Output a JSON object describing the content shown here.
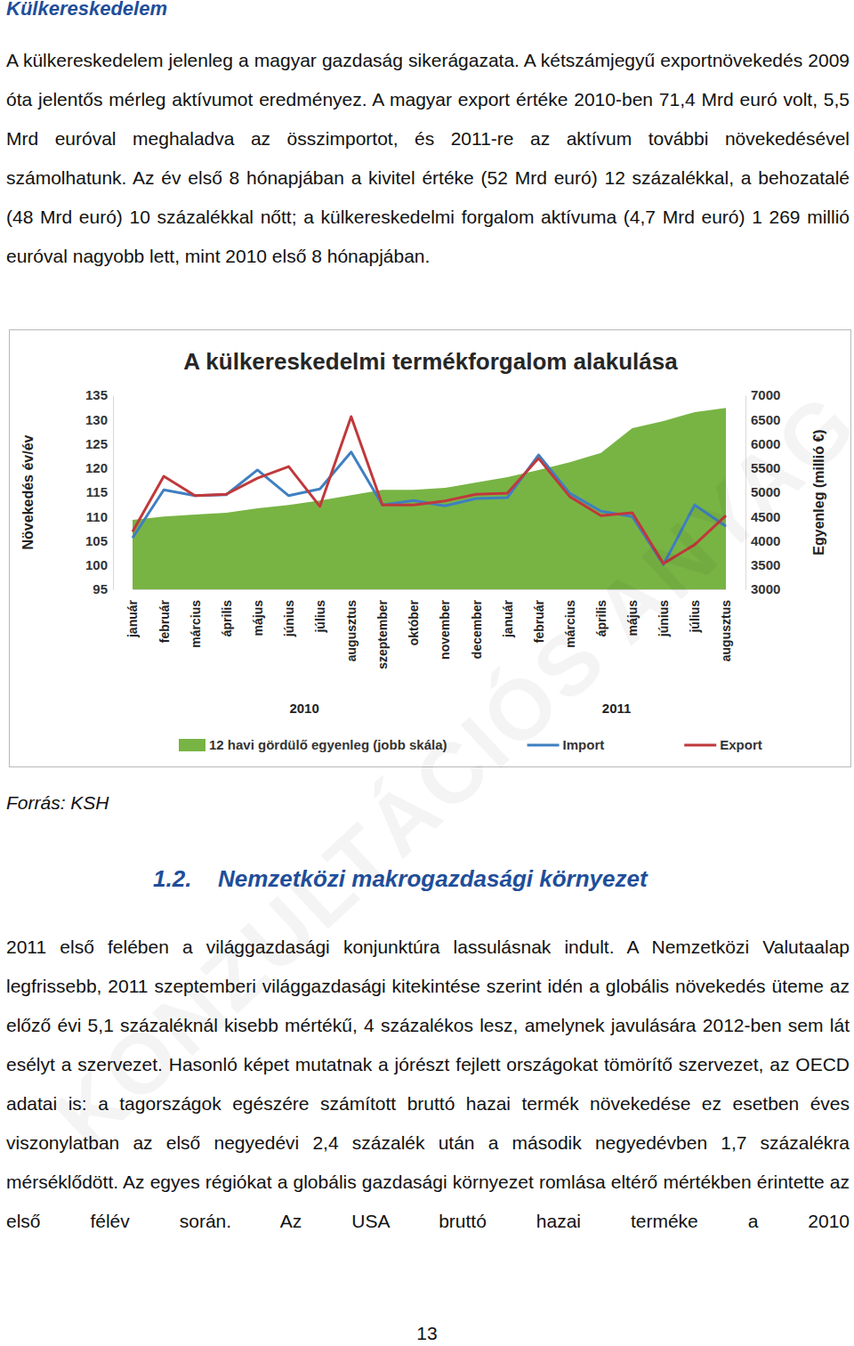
{
  "section_title": "Külkereskedelem",
  "paragraphs": [
    "A külkereskedelem jelenleg a magyar gazdaság sikerágazata. A kétszámjegyű exportnövekedés 2009 óta jelentős mérleg aktívumot eredményez. A magyar export értéke 2010-ben 71,4 Mrd euró volt, 5,5 Mrd euróval meghaladva az összimportot, és 2011-re az aktívum további növekedésével számolhatunk. Az év első 8 hónapjában a kivitel értéke (52 Mrd euró) 12 százalékkal, a behozatalé (48 Mrd euró) 10 százalékkal nőtt; a külkereskedelmi forgalom aktívuma (4,7 Mrd euró) 1 269 millió euróval nagyobb lett, mint 2010 első 8 hónapjában."
  ],
  "chart_data": {
    "type": "line",
    "title": "A külkereskedelmi termékforgalom alakulása",
    "y_label": "Növekedés év/év",
    "y2_label": "Egyenleg (millió €)",
    "categories": [
      "január",
      "február",
      "március",
      "április",
      "május",
      "június",
      "július",
      "augusztus",
      "szeptember",
      "október",
      "november",
      "december",
      "január",
      "február",
      "március",
      "április",
      "május",
      "június",
      "július",
      "augusztus"
    ],
    "annotations": [
      "2010",
      "2011"
    ],
    "series": [
      {
        "name": "12 havi gördülő egyenleg (jobb skála)",
        "type": "area",
        "axis": "y2",
        "color": "#78b444",
        "values": [
          4430,
          4500,
          4540,
          4580,
          4670,
          4740,
          4830,
          4940,
          5050,
          5050,
          5090,
          5200,
          5310,
          5460,
          5620,
          5810,
          6320,
          6470,
          6650,
          6740
        ]
      },
      {
        "name": "Import",
        "type": "line",
        "color": "#3f7fc1",
        "values": [
          105.6,
          115.5,
          114.3,
          114.5,
          119.6,
          114.3,
          115.7,
          123.3,
          112.4,
          113.3,
          112.2,
          113.7,
          113.9,
          122.7,
          114.8,
          111.1,
          110.0,
          100.1,
          112.4,
          108.0
        ]
      },
      {
        "name": "Export",
        "type": "line",
        "color": "#c0393b",
        "values": [
          106.9,
          118.3,
          114.3,
          114.6,
          117.9,
          120.3,
          112.1,
          130.6,
          112.4,
          112.4,
          113.2,
          114.6,
          114.8,
          122.0,
          114.1,
          110.2,
          110.8,
          100.3,
          104.2,
          110.2
        ]
      }
    ],
    "ylim": [
      95,
      135
    ],
    "yticks": [
      95,
      100,
      105,
      110,
      115,
      120,
      125,
      130,
      135
    ],
    "y2lim": [
      3000,
      7000
    ],
    "y2ticks": [
      3000,
      3500,
      4000,
      4500,
      5000,
      5500,
      6000,
      6500,
      7000
    ],
    "grid": false,
    "legend": "bottom"
  },
  "source": "Forrás: KSH",
  "section_number": "1.2.",
  "section_heading": "Nemzetközi makrogazdasági környezet",
  "paragraphs_2": [
    "2011 első felében a világgazdasági konjunktúra lassulásnak indult. A Nemzetközi Valutaalap legfrissebb, 2011 szeptemberi világgazdasági kitekintése szerint idén a globális növekedés üteme az előző évi 5,1 százaléknál kisebb mértékű, 4 százalékos lesz, amelynek javulására 2012-ben sem lát esélyt a szervezet. Hasonló képet mutatnak a jórészt fejlett országokat tömörítő szervezet, az OECD adatai is: a tagországok egészére számított bruttó hazai termék növekedése ez esetben éves viszonylatban az első negyedévi 2,4 százalék után a második negyedévben 1,7 százalékra mérséklődött. Az egyes régiókat a globális gazdasági környezet romlása eltérő mértékben érintette az első félév során. Az USA bruttó hazai terméke a 2010"
  ],
  "page_number": "13",
  "watermark": "KONZULTÁCIÓS ANYAG"
}
